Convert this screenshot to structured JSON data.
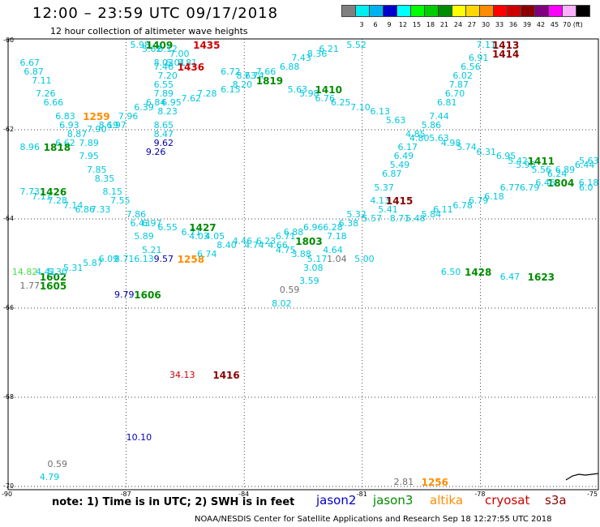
{
  "title": "12:00 – 23:59 UTC 09/17/2018",
  "subtitle": "12 hour collection of altimeter wave heights",
  "colorbar": {
    "colors": [
      "#808080",
      "#00eeee",
      "#00b2ee",
      "#0000cd",
      "#00ffff",
      "#00ff00",
      "#00cd00",
      "#008b00",
      "#ffff00",
      "#ffd700",
      "#ff8c00",
      "#ff0000",
      "#cd0000",
      "#8b0000",
      "#800080",
      "#ff00ff",
      "#ffb0ff",
      "#000000"
    ],
    "labels": [
      "3",
      "6",
      "9",
      "12",
      "15",
      "18",
      "21",
      "24",
      "27",
      "30",
      "33",
      "36",
      "39",
      "42",
      "45",
      "70 (ft)"
    ]
  },
  "axes": {
    "lat_labels": [
      "-60",
      "-62",
      "-64",
      "-66",
      "-68",
      "-70"
    ],
    "lon_labels": [
      "-90",
      "-87",
      "-84",
      "-81",
      "-78",
      "-75"
    ]
  },
  "satellite_colors": {
    "jason2": "#0000cd",
    "jason3": "#008b00",
    "altika": "#ff8c00",
    "cryosat": "#cd0000",
    "s3a": "#8b0000",
    "cyan": "#00c8dd",
    "blue": "#0000aa",
    "gray": "#707070",
    "lgreen": "#44dd44"
  },
  "measurements": [
    {
      "t": "5.98",
      "c": "cyan",
      "lon": -86.9,
      "lat": -60.1
    },
    {
      "t": "5.62",
      "c": "cyan",
      "lon": -86.6,
      "lat": -60.2
    },
    {
      "t": "1409",
      "c": "jason3",
      "lon": -86.5,
      "lat": -60.1,
      "pass": true
    },
    {
      "t": "1435",
      "c": "cryosat",
      "lon": -85.3,
      "lat": -60.1,
      "pass": true
    },
    {
      "t": "6.12",
      "c": "cyan",
      "lon": -86.2,
      "lat": -60.2
    },
    {
      "t": "7.00",
      "c": "cyan",
      "lon": -85.9,
      "lat": -60.3
    },
    {
      "t": "8.03",
      "c": "cyan",
      "lon": -86.3,
      "lat": -60.5
    },
    {
      "t": "6.01",
      "c": "cyan",
      "lon": -86.0,
      "lat": -60.5
    },
    {
      "t": "8.81",
      "c": "cyan",
      "lon": -85.7,
      "lat": -60.5
    },
    {
      "t": "7.46",
      "c": "cyan",
      "lon": -86.3,
      "lat": -60.6
    },
    {
      "t": "1436",
      "c": "cryosat",
      "lon": -85.7,
      "lat": -60.6,
      "pass": true
    },
    {
      "t": "7.20",
      "c": "cyan",
      "lon": -86.2,
      "lat": -60.8
    },
    {
      "t": "6.55",
      "c": "cyan",
      "lon": -86.3,
      "lat": -61.0
    },
    {
      "t": "7.89",
      "c": "cyan",
      "lon": -86.3,
      "lat": -61.2
    },
    {
      "t": "6.95",
      "c": "cyan",
      "lon": -86.1,
      "lat": -61.4
    },
    {
      "t": "6.84",
      "c": "cyan",
      "lon": -86.5,
      "lat": -61.4
    },
    {
      "t": "8.23",
      "c": "cyan",
      "lon": -86.2,
      "lat": -61.6
    },
    {
      "t": "6.39",
      "c": "cyan",
      "lon": -86.8,
      "lat": -61.5
    },
    {
      "t": "7.96",
      "c": "cyan",
      "lon": -87.2,
      "lat": -61.7
    },
    {
      "t": "6.97",
      "c": "cyan",
      "lon": -87.5,
      "lat": -61.9
    },
    {
      "t": "7.62",
      "c": "cyan",
      "lon": -85.6,
      "lat": -61.3
    },
    {
      "t": "7.28",
      "c": "cyan",
      "lon": -85.2,
      "lat": -61.2
    },
    {
      "t": "6.15",
      "c": "cyan",
      "lon": -84.6,
      "lat": -61.1
    },
    {
      "t": "8.20",
      "c": "cyan",
      "lon": -84.3,
      "lat": -61.0
    },
    {
      "t": "8.63",
      "c": "cyan",
      "lon": -84.2,
      "lat": -60.8
    },
    {
      "t": "7.74",
      "c": "cyan",
      "lon": -84.0,
      "lat": -60.8
    },
    {
      "t": "7.66",
      "c": "cyan",
      "lon": -83.7,
      "lat": -60.7
    },
    {
      "t": "1819",
      "c": "jason3",
      "lon": -83.7,
      "lat": -60.9,
      "pass": true
    },
    {
      "t": "6.72",
      "c": "cyan",
      "lon": -84.6,
      "lat": -60.7
    },
    {
      "t": "6.88",
      "c": "cyan",
      "lon": -83.1,
      "lat": -60.6
    },
    {
      "t": "7.43",
      "c": "cyan",
      "lon": -82.8,
      "lat": -60.4
    },
    {
      "t": "8.36",
      "c": "cyan",
      "lon": -82.4,
      "lat": -60.3
    },
    {
      "t": "6.21",
      "c": "cyan",
      "lon": -82.1,
      "lat": -60.2
    },
    {
      "t": "5.52",
      "c": "cyan",
      "lon": -81.4,
      "lat": -60.1
    },
    {
      "t": "5.63",
      "c": "cyan",
      "lon": -82.9,
      "lat": -61.1
    },
    {
      "t": "5.98",
      "c": "cyan",
      "lon": -82.6,
      "lat": -61.2
    },
    {
      "t": "1410",
      "c": "jason3",
      "lon": -82.2,
      "lat": -61.1,
      "pass": true
    },
    {
      "t": "6.76",
      "c": "cyan",
      "lon": -82.2,
      "lat": -61.3
    },
    {
      "t": "6.25",
      "c": "cyan",
      "lon": -81.8,
      "lat": -61.4
    },
    {
      "t": "7.10",
      "c": "cyan",
      "lon": -81.3,
      "lat": -61.5
    },
    {
      "t": "6.13",
      "c": "cyan",
      "lon": -80.8,
      "lat": -61.6
    },
    {
      "t": "5.63",
      "c": "cyan",
      "lon": -80.4,
      "lat": -61.8
    },
    {
      "t": "6.67",
      "c": "cyan",
      "lon": -89.7,
      "lat": -60.5
    },
    {
      "t": "6.87",
      "c": "cyan",
      "lon": -89.6,
      "lat": -60.7
    },
    {
      "t": "7.11",
      "c": "cyan",
      "lon": -89.4,
      "lat": -60.9
    },
    {
      "t": "7.26",
      "c": "cyan",
      "lon": -89.3,
      "lat": -61.2
    },
    {
      "t": "6.66",
      "c": "cyan",
      "lon": -89.1,
      "lat": -61.4
    },
    {
      "t": "6.83",
      "c": "cyan",
      "lon": -88.8,
      "lat": -61.7
    },
    {
      "t": "1259",
      "c": "altika",
      "lon": -88.1,
      "lat": -61.7,
      "pass": true
    },
    {
      "t": "6.93",
      "c": "cyan",
      "lon": -88.7,
      "lat": -61.9
    },
    {
      "t": "7.90",
      "c": "cyan",
      "lon": -88.0,
      "lat": -62.0
    },
    {
      "t": "8.19",
      "c": "cyan",
      "lon": -87.7,
      "lat": -61.9
    },
    {
      "t": "8.87",
      "c": "cyan",
      "lon": -88.5,
      "lat": -62.1
    },
    {
      "t": "6.62",
      "c": "cyan",
      "lon": -88.8,
      "lat": -62.3
    },
    {
      "t": "7.89",
      "c": "cyan",
      "lon": -88.2,
      "lat": -62.3
    },
    {
      "t": "8.96",
      "c": "cyan",
      "lon": -89.7,
      "lat": -62.4
    },
    {
      "t": "1818",
      "c": "jason3",
      "lon": -89.1,
      "lat": -62.4,
      "pass": true
    },
    {
      "t": "7.95",
      "c": "cyan",
      "lon": -88.2,
      "lat": -62.6
    },
    {
      "t": "7.85",
      "c": "cyan",
      "lon": -88.0,
      "lat": -62.9
    },
    {
      "t": "8.35",
      "c": "cyan",
      "lon": -87.8,
      "lat": -63.1
    },
    {
      "t": "8.15",
      "c": "cyan",
      "lon": -87.6,
      "lat": -63.4
    },
    {
      "t": "7.55",
      "c": "cyan",
      "lon": -87.4,
      "lat": -63.6
    },
    {
      "t": "7.73",
      "c": "cyan",
      "lon": -89.7,
      "lat": -63.4
    },
    {
      "t": "7.11",
      "c": "cyan",
      "lon": -89.4,
      "lat": -63.5
    },
    {
      "t": "1426",
      "c": "jason3",
      "lon": -89.2,
      "lat": -63.4,
      "pass": true
    },
    {
      "t": "7.28",
      "c": "cyan",
      "lon": -89.0,
      "lat": -63.6
    },
    {
      "t": "7.14",
      "c": "cyan",
      "lon": -88.6,
      "lat": -63.7
    },
    {
      "t": "6.86",
      "c": "cyan",
      "lon": -88.3,
      "lat": -63.8
    },
    {
      "t": "7.33",
      "c": "cyan",
      "lon": -87.9,
      "lat": -63.8
    },
    {
      "t": "7.86",
      "c": "cyan",
      "lon": -87.0,
      "lat": -63.9
    },
    {
      "t": "8.65",
      "c": "cyan",
      "lon": -86.3,
      "lat": -61.9
    },
    {
      "t": "8.47",
      "c": "cyan",
      "lon": -86.3,
      "lat": -62.1
    },
    {
      "t": "9.62",
      "c": "blue",
      "lon": -86.3,
      "lat": -62.3
    },
    {
      "t": "9.26",
      "c": "blue",
      "lon": -86.5,
      "lat": -62.5
    },
    {
      "t": "6.43",
      "c": "cyan",
      "lon": -86.9,
      "lat": -64.1
    },
    {
      "t": "6.97",
      "c": "cyan",
      "lon": -86.6,
      "lat": -64.1
    },
    {
      "t": "6.55",
      "c": "cyan",
      "lon": -86.2,
      "lat": -64.2
    },
    {
      "t": "6.71",
      "c": "cyan",
      "lon": -85.6,
      "lat": -64.3
    },
    {
      "t": "1427",
      "c": "jason3",
      "lon": -85.4,
      "lat": -64.2,
      "pass": true
    },
    {
      "t": "4.03",
      "c": "cyan",
      "lon": -85.4,
      "lat": -64.4
    },
    {
      "t": "4.05",
      "c": "cyan",
      "lon": -85.0,
      "lat": -64.4
    },
    {
      "t": "5.89",
      "c": "cyan",
      "lon": -86.8,
      "lat": -64.4
    },
    {
      "t": "5.21",
      "c": "cyan",
      "lon": -86.6,
      "lat": -64.7
    },
    {
      "t": "9.57",
      "c": "blue",
      "lon": -86.3,
      "lat": -64.9
    },
    {
      "t": "6.13",
      "c": "cyan",
      "lon": -86.8,
      "lat": -64.9
    },
    {
      "t": "8.71",
      "c": "cyan",
      "lon": -87.3,
      "lat": -64.9
    },
    {
      "t": "1258",
      "c": "altika",
      "lon": -85.7,
      "lat": -64.9,
      "pass": true
    },
    {
      "t": "6.74",
      "c": "cyan",
      "lon": -85.2,
      "lat": -64.8
    },
    {
      "t": "8.40",
      "c": "cyan",
      "lon": -84.7,
      "lat": -64.6
    },
    {
      "t": "4.46",
      "c": "cyan",
      "lon": -84.3,
      "lat": -64.5
    },
    {
      "t": "4.74",
      "c": "cyan",
      "lon": -84.0,
      "lat": -64.6
    },
    {
      "t": "6.23",
      "c": "cyan",
      "lon": -83.7,
      "lat": -64.5
    },
    {
      "t": "4.66",
      "c": "cyan",
      "lon": -83.4,
      "lat": -64.6
    },
    {
      "t": "4.75",
      "c": "cyan",
      "lon": -83.2,
      "lat": -64.7
    },
    {
      "t": "6.71",
      "c": "cyan",
      "lon": -83.2,
      "lat": -64.4
    },
    {
      "t": "6.88",
      "c": "cyan",
      "lon": -83.0,
      "lat": -64.3
    },
    {
      "t": "1803",
      "c": "jason3",
      "lon": -82.7,
      "lat": -64.5,
      "pass": true
    },
    {
      "t": "6.96",
      "c": "cyan",
      "lon": -82.5,
      "lat": -64.2
    },
    {
      "t": "3.88",
      "c": "cyan",
      "lon": -82.8,
      "lat": -64.8
    },
    {
      "t": "5.17",
      "c": "cyan",
      "lon": -82.4,
      "lat": -64.9
    },
    {
      "t": "4.64",
      "c": "cyan",
      "lon": -82.0,
      "lat": -64.7
    },
    {
      "t": "1.04",
      "c": "gray",
      "lon": -81.9,
      "lat": -64.9
    },
    {
      "t": "7.18",
      "c": "cyan",
      "lon": -81.9,
      "lat": -64.4
    },
    {
      "t": "6.28",
      "c": "cyan",
      "lon": -82.0,
      "lat": -64.2
    },
    {
      "t": "6.38",
      "c": "cyan",
      "lon": -81.6,
      "lat": -64.1
    },
    {
      "t": "5.32",
      "c": "cyan",
      "lon": -81.4,
      "lat": -63.9
    },
    {
      "t": "5.57",
      "c": "cyan",
      "lon": -81.0,
      "lat": -64.0
    },
    {
      "t": "5.00",
      "c": "cyan",
      "lon": -81.2,
      "lat": -64.9
    },
    {
      "t": "3.08",
      "c": "cyan",
      "lon": -82.5,
      "lat": -65.1
    },
    {
      "t": "3.59",
      "c": "cyan",
      "lon": -82.6,
      "lat": -65.4
    },
    {
      "t": "0.59",
      "c": "gray",
      "lon": -83.1,
      "lat": -65.6
    },
    {
      "t": "8.02",
      "c": "cyan",
      "lon": -83.3,
      "lat": -65.9
    },
    {
      "t": "14.82",
      "c": "lgreen",
      "lon": -89.9,
      "lat": -65.2
    },
    {
      "t": "4.41",
      "c": "cyan",
      "lon": -89.3,
      "lat": -65.2
    },
    {
      "t": "1602",
      "c": "jason3",
      "lon": -89.2,
      "lat": -65.3,
      "pass": true
    },
    {
      "t": "5.30",
      "c": "cyan",
      "lon": -89.0,
      "lat": -65.2
    },
    {
      "t": "1.77",
      "c": "gray",
      "lon": -89.7,
      "lat": -65.5
    },
    {
      "t": "1605",
      "c": "jason3",
      "lon": -89.2,
      "lat": -65.5,
      "pass": true
    },
    {
      "t": "5.31",
      "c": "cyan",
      "lon": -88.6,
      "lat": -65.1
    },
    {
      "t": "5.87",
      "c": "cyan",
      "lon": -88.1,
      "lat": -65.0
    },
    {
      "t": "6.09",
      "c": "cyan",
      "lon": -87.7,
      "lat": -64.9
    },
    {
      "t": "9.79",
      "c": "blue",
      "lon": -87.3,
      "lat": -65.7
    },
    {
      "t": "1606",
      "c": "jason3",
      "lon": -86.8,
      "lat": -65.7,
      "pass": true
    },
    {
      "t": "4.13",
      "c": "cyan",
      "lon": -80.8,
      "lat": -63.6
    },
    {
      "t": "5.41",
      "c": "cyan",
      "lon": -80.6,
      "lat": -63.8
    },
    {
      "t": "5.37",
      "c": "cyan",
      "lon": -80.7,
      "lat": -63.3
    },
    {
      "t": "6.87",
      "c": "cyan",
      "lon": -80.5,
      "lat": -63.0
    },
    {
      "t": "5.49",
      "c": "cyan",
      "lon": -80.3,
      "lat": -62.8
    },
    {
      "t": "6.49",
      "c": "cyan",
      "lon": -80.2,
      "lat": -62.6
    },
    {
      "t": "6.17",
      "c": "cyan",
      "lon": -80.1,
      "lat": -62.4
    },
    {
      "t": "4.80",
      "c": "cyan",
      "lon": -79.8,
      "lat": -62.2
    },
    {
      "t": "4.85",
      "c": "cyan",
      "lon": -79.9,
      "lat": -62.1
    },
    {
      "t": "5.86",
      "c": "cyan",
      "lon": -79.5,
      "lat": -61.9
    },
    {
      "t": "5.63",
      "c": "cyan",
      "lon": -79.3,
      "lat": -62.2
    },
    {
      "t": "7.44",
      "c": "cyan",
      "lon": -79.3,
      "lat": -61.7
    },
    {
      "t": "6.81",
      "c": "cyan",
      "lon": -79.1,
      "lat": -61.4
    },
    {
      "t": "6.70",
      "c": "cyan",
      "lon": -78.9,
      "lat": -61.2
    },
    {
      "t": "7.87",
      "c": "cyan",
      "lon": -78.8,
      "lat": -61.0
    },
    {
      "t": "6.02",
      "c": "cyan",
      "lon": -78.7,
      "lat": -60.8
    },
    {
      "t": "6.56",
      "c": "cyan",
      "lon": -78.5,
      "lat": -60.6
    },
    {
      "t": "6.91",
      "c": "cyan",
      "lon": -78.3,
      "lat": -60.4
    },
    {
      "t": "7.11",
      "c": "cyan",
      "lon": -78.1,
      "lat": -60.1
    },
    {
      "t": "1413",
      "c": "s3a",
      "lon": -77.7,
      "lat": -60.1,
      "pass": true
    },
    {
      "t": "1414",
      "c": "s3a",
      "lon": -77.7,
      "lat": -60.3,
      "pass": true
    },
    {
      "t": "1415",
      "c": "s3a",
      "lon": -80.4,
      "lat": -63.6,
      "pass": true
    },
    {
      "t": "4.98",
      "c": "cyan",
      "lon": -79.0,
      "lat": -62.3
    },
    {
      "t": "5.74",
      "c": "cyan",
      "lon": -78.6,
      "lat": -62.4
    },
    {
      "t": "6.31",
      "c": "cyan",
      "lon": -78.1,
      "lat": -62.5
    },
    {
      "t": "6.95",
      "c": "cyan",
      "lon": -77.6,
      "lat": -62.6
    },
    {
      "t": "5.42",
      "c": "cyan",
      "lon": -77.3,
      "lat": -62.7
    },
    {
      "t": "5.90",
      "c": "cyan",
      "lon": -77.1,
      "lat": -62.8
    },
    {
      "t": "1411",
      "c": "jason3",
      "lon": -76.8,
      "lat": -62.7,
      "pass": true
    },
    {
      "t": "5.56",
      "c": "cyan",
      "lon": -76.7,
      "lat": -62.9
    },
    {
      "t": "6.24",
      "c": "cyan",
      "lon": -76.3,
      "lat": -63.0
    },
    {
      "t": "6.89",
      "c": "cyan",
      "lon": -76.1,
      "lat": -62.9
    },
    {
      "t": "6.44",
      "c": "cyan",
      "lon": -75.6,
      "lat": -62.8
    },
    {
      "t": "5.63",
      "c": "cyan",
      "lon": -75.2,
      "lat": -62.7
    },
    {
      "t": "1804",
      "c": "jason3",
      "lon": -76.3,
      "lat": -63.2,
      "pass": true
    },
    {
      "t": "6.18",
      "c": "cyan",
      "lon": -75.5,
      "lat": -63.2
    },
    {
      "t": "6.0",
      "c": "cyan",
      "lon": -75.0,
      "lat": -63.3
    },
    {
      "t": "6.46",
      "c": "cyan",
      "lon": -76.6,
      "lat": -63.2
    },
    {
      "t": "6.79",
      "c": "cyan",
      "lon": -77.0,
      "lat": -63.3
    },
    {
      "t": "6.77",
      "c": "cyan",
      "lon": -77.5,
      "lat": -63.3
    },
    {
      "t": "6.18",
      "c": "cyan",
      "lon": -77.9,
      "lat": -63.5
    },
    {
      "t": "6.79",
      "c": "cyan",
      "lon": -78.3,
      "lat": -63.6
    },
    {
      "t": "6.78",
      "c": "cyan",
      "lon": -78.7,
      "lat": -63.7
    },
    {
      "t": "6.11",
      "c": "cyan",
      "lon": -79.2,
      "lat": -63.8
    },
    {
      "t": "5.84",
      "c": "cyan",
      "lon": -79.5,
      "lat": -63.9
    },
    {
      "t": "5.48",
      "c": "cyan",
      "lon": -79.9,
      "lat": -64.0
    },
    {
      "t": "8.71",
      "c": "cyan",
      "lon": -80.3,
      "lat": -64.0
    },
    {
      "t": "6.50",
      "c": "cyan",
      "lon": -79.0,
      "lat": -65.2
    },
    {
      "t": "1428",
      "c": "jason3",
      "lon": -78.4,
      "lat": -65.2,
      "pass": true
    },
    {
      "t": "6.47",
      "c": "cyan",
      "lon": -77.5,
      "lat": -65.3
    },
    {
      "t": "1623",
      "c": "jason3",
      "lon": -76.8,
      "lat": -65.3,
      "pass": true
    },
    {
      "t": "34.13",
      "c": "cryosat",
      "lon": -85.9,
      "lat": -67.5
    },
    {
      "t": "1416",
      "c": "s3a",
      "lon": -84.8,
      "lat": -67.5,
      "pass": true
    },
    {
      "t": "10.10",
      "c": "blue",
      "lon": -87.0,
      "lat": -68.9
    },
    {
      "t": "0.59",
      "c": "gray",
      "lon": -89.0,
      "lat": -69.5
    },
    {
      "t": "4.79",
      "c": "cyan",
      "lon": -89.2,
      "lat": -69.8
    },
    {
      "t": "2.81",
      "c": "gray",
      "lon": -80.2,
      "lat": -69.9
    },
    {
      "t": "1256",
      "c": "altika",
      "lon": -79.5,
      "lat": -69.9,
      "pass": true
    }
  ],
  "note": "note:  1) Time is in UTC;  2) SWH is in feet",
  "legend": [
    {
      "label": "jason2",
      "color": "#0000cd"
    },
    {
      "label": "jason3",
      "color": "#008b00"
    },
    {
      "label": "altika",
      "color": "#ff8c00"
    },
    {
      "label": "cryosat",
      "color": "#cd0000"
    },
    {
      "label": "s3a",
      "color": "#8b0000"
    }
  ],
  "credit": "NOAA/NESDIS Center for Satellite Applications and Research     Sep 18 12:27:55 UTC 2018"
}
